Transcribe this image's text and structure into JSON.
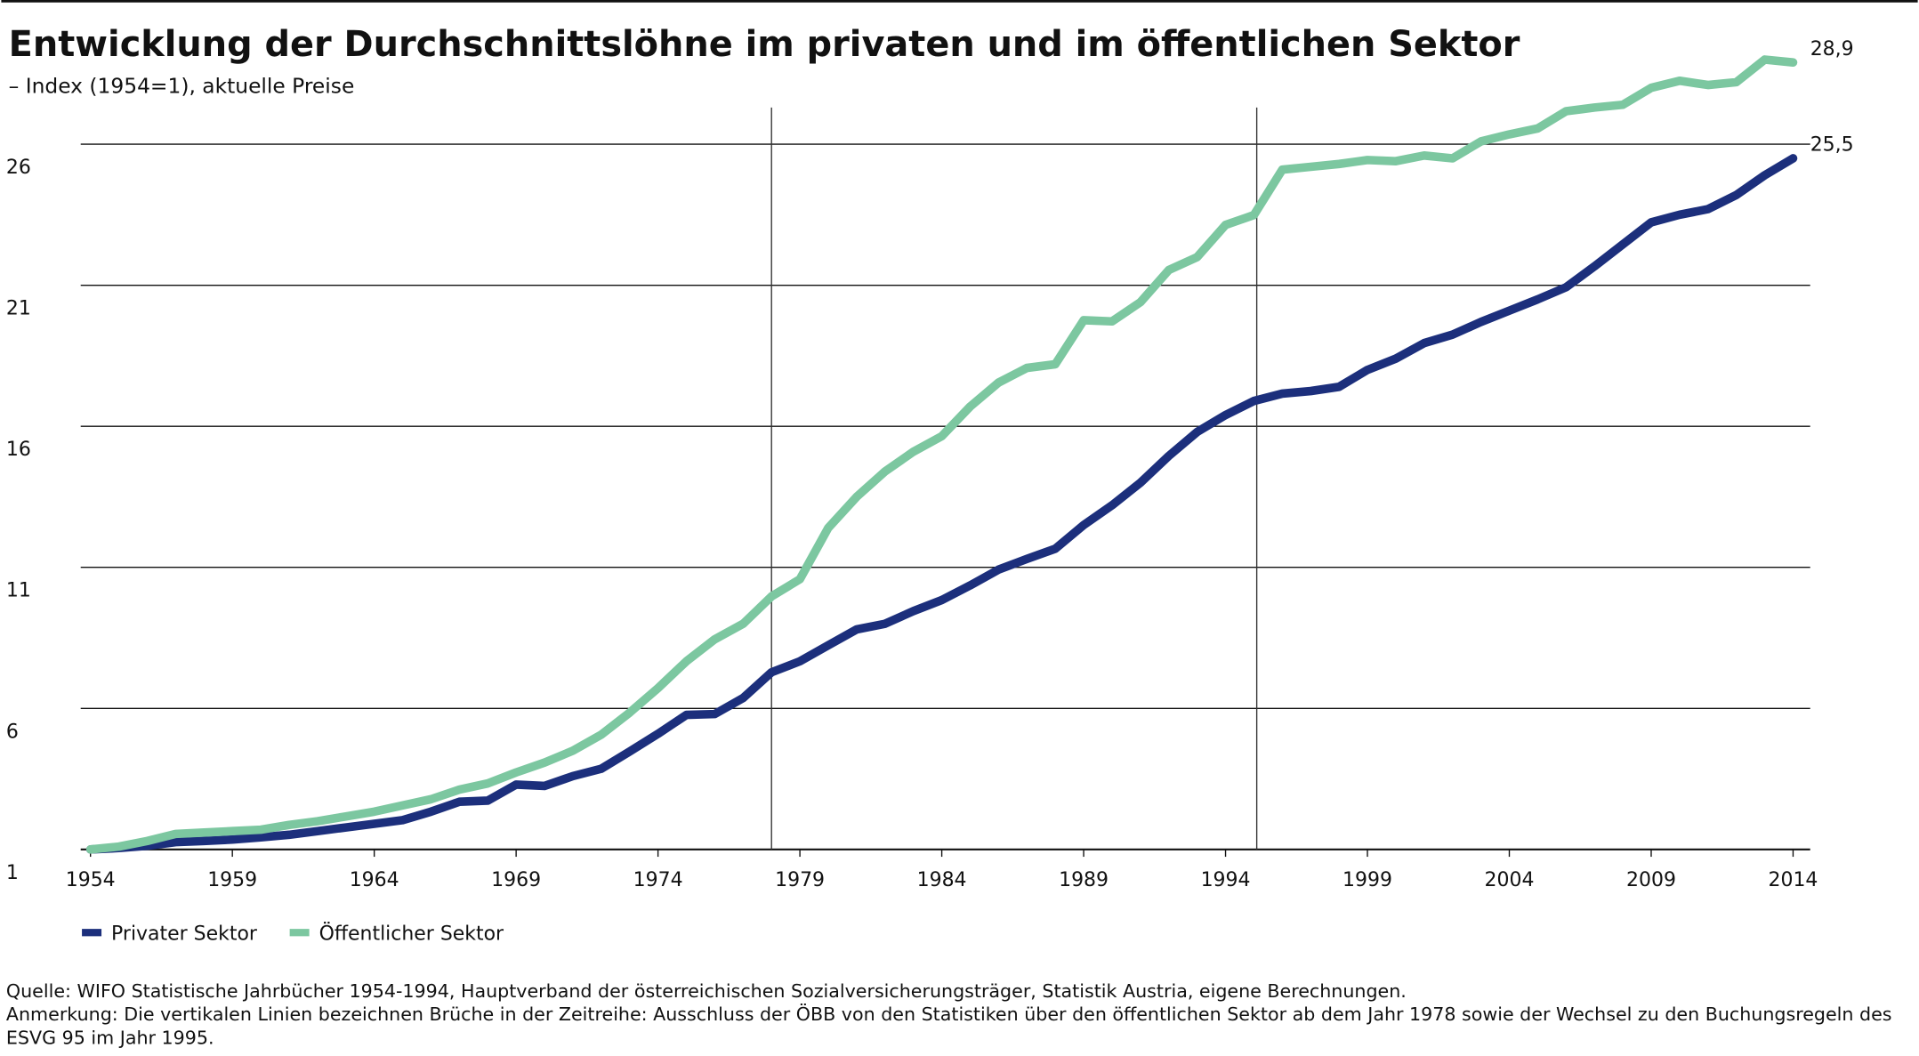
{
  "chart_data": {
    "type": "line",
    "title": "Entwicklung der Durchschnittslöhne im privaten und im öffentlichen Sektor",
    "subtitle": "– Index (1954=1), aktuelle Preise",
    "x": [
      1954,
      1955,
      1956,
      1957,
      1958,
      1959,
      1960,
      1961,
      1962,
      1963,
      1964,
      1965,
      1966,
      1967,
      1968,
      1969,
      1970,
      1971,
      1972,
      1973,
      1974,
      1975,
      1976,
      1977,
      1978,
      1979,
      1980,
      1981,
      1982,
      1983,
      1984,
      1985,
      1986,
      1987,
      1988,
      1989,
      1990,
      1991,
      1992,
      1993,
      1994,
      1995,
      1996,
      1997,
      1998,
      1999,
      2000,
      2001,
      2002,
      2003,
      2004,
      2005,
      2006,
      2007,
      2008,
      2009,
      2010,
      2011,
      2012,
      2013,
      2014
    ],
    "series": [
      {
        "name": "Privater Sektor",
        "color": "#1c2f7c",
        "values": [
          1.0,
          1.05,
          1.13,
          1.26,
          1.3,
          1.35,
          1.43,
          1.52,
          1.65,
          1.78,
          1.91,
          2.04,
          2.34,
          2.69,
          2.73,
          3.3,
          3.25,
          3.6,
          3.86,
          4.47,
          5.1,
          5.77,
          5.8,
          6.37,
          7.28,
          7.67,
          8.24,
          8.8,
          9.0,
          9.45,
          9.84,
          10.36,
          10.92,
          11.3,
          11.66,
          12.5,
          13.2,
          14.0,
          14.95,
          15.8,
          16.4,
          16.9,
          17.16,
          17.25,
          17.4,
          18.0,
          18.4,
          18.95,
          19.25,
          19.7,
          20.1,
          20.5,
          20.93,
          21.67,
          22.45,
          23.23,
          23.5,
          23.7,
          24.2,
          24.9,
          25.5
        ],
        "value_labels": [
          null,
          null,
          null,
          null,
          null,
          null,
          null,
          null,
          null,
          null,
          null,
          null,
          null,
          null,
          null,
          null,
          null,
          null,
          null,
          null,
          null,
          null,
          null,
          null,
          null,
          null,
          null,
          null,
          null,
          null,
          null,
          null,
          null,
          null,
          null,
          null,
          null,
          null,
          null,
          null,
          null,
          null,
          null,
          null,
          null,
          null,
          null,
          null,
          null,
          null,
          null,
          null,
          null,
          null,
          null,
          null,
          null,
          null,
          null,
          null,
          "25,5"
        ]
      },
      {
        "name": "Öffentlicher Sektor",
        "color": "#7cc7a0",
        "values": [
          1.0,
          1.1,
          1.3,
          1.55,
          1.6,
          1.65,
          1.7,
          1.87,
          2.0,
          2.17,
          2.34,
          2.56,
          2.78,
          3.12,
          3.34,
          3.73,
          4.08,
          4.5,
          5.07,
          5.85,
          6.72,
          7.67,
          8.45,
          9.0,
          9.97,
          10.58,
          12.4,
          13.5,
          14.4,
          15.1,
          15.65,
          16.7,
          17.55,
          18.07,
          18.2,
          19.76,
          19.72,
          20.4,
          21.54,
          22.0,
          23.14,
          23.49,
          25.1,
          25.2,
          25.3,
          25.44,
          25.4,
          25.6,
          25.5,
          26.1,
          26.35,
          26.56,
          27.17,
          27.3,
          27.4,
          28.0,
          28.25,
          28.1,
          28.2,
          29.0,
          28.9
        ],
        "value_labels": [
          null,
          null,
          null,
          null,
          null,
          null,
          null,
          null,
          null,
          null,
          null,
          null,
          null,
          null,
          null,
          null,
          null,
          null,
          null,
          null,
          null,
          null,
          null,
          null,
          null,
          null,
          null,
          null,
          null,
          null,
          null,
          null,
          null,
          null,
          null,
          null,
          null,
          null,
          null,
          null,
          null,
          null,
          null,
          null,
          null,
          null,
          null,
          null,
          null,
          null,
          null,
          null,
          null,
          null,
          null,
          null,
          null,
          null,
          null,
          null,
          "28,9"
        ]
      }
    ],
    "xlim": [
      1954,
      2014
    ],
    "xticks": [
      1954,
      1959,
      1964,
      1969,
      1974,
      1979,
      1984,
      1989,
      1994,
      1999,
      2004,
      2009,
      2014
    ],
    "ylim": [
      1,
      27.3
    ],
    "yticks": [
      1,
      6,
      11,
      16,
      21,
      26
    ],
    "grid": true,
    "breaks": [
      1978,
      1995.1
    ],
    "source": "Quelle: WIFO Statistische Jahrbücher 1954-1994, Hauptverband der österreichischen Sozialversicherungsträger, Statistik Austria, eigene Berechnungen.",
    "note": "Anmerkung: Die vertikalen Linien bezeichnen Brüche in der Zeitreihe: Ausschluss der ÖBB von den Statistiken über den öffentlichen Sektor ab dem Jahr 1978 sowie der Wechsel zu den Buchungsregeln des ESVG 95 im Jahr 1995."
  }
}
